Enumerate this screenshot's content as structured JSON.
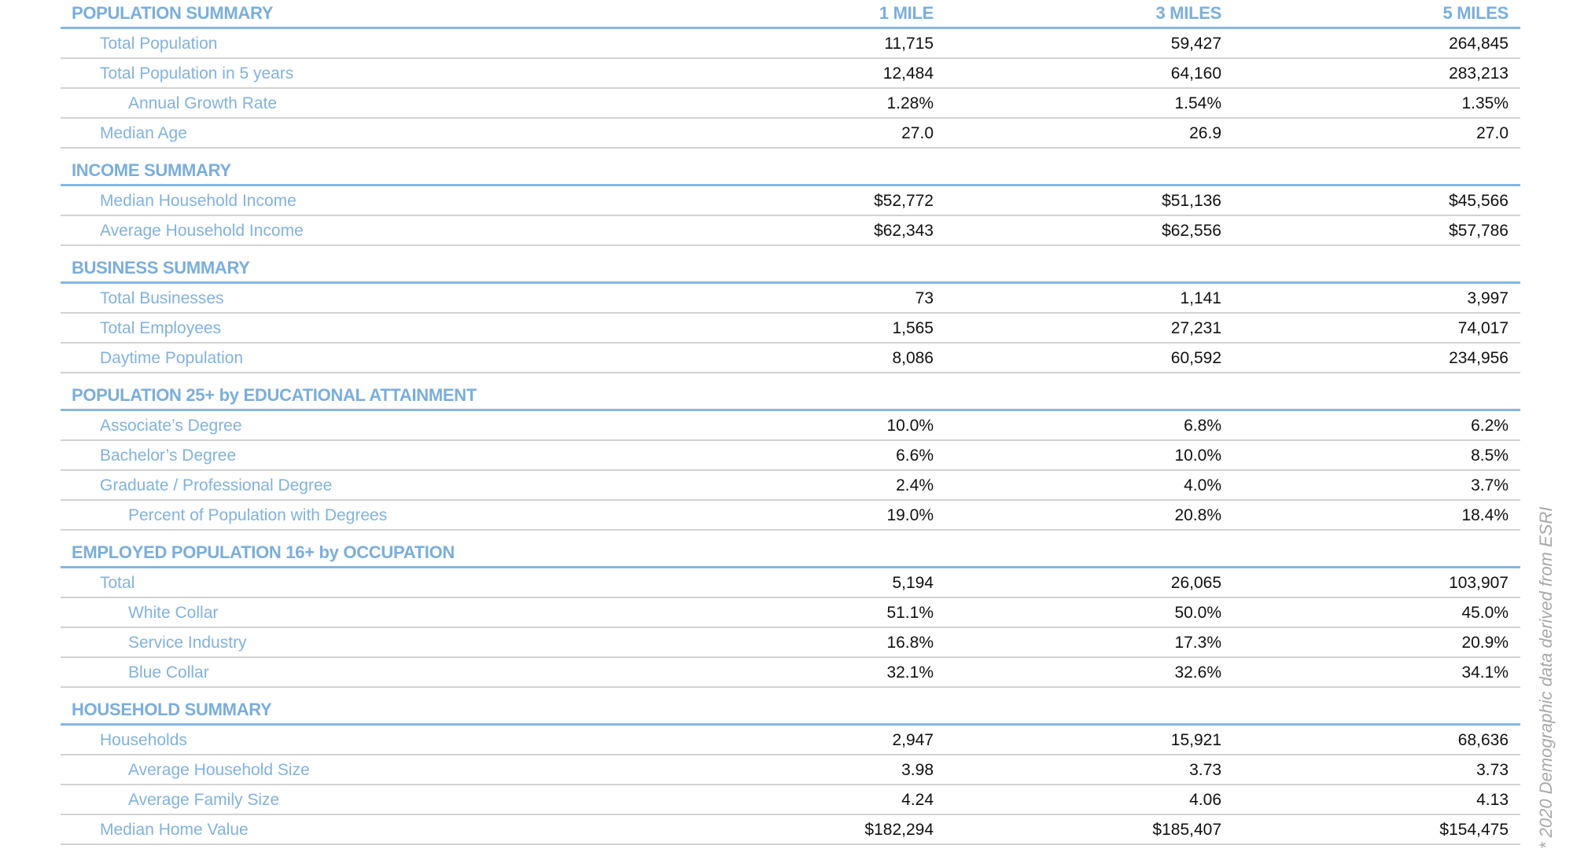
{
  "columns": [
    "1 MILE",
    "3 MILES",
    "5 MILES"
  ],
  "sections": [
    {
      "title": "POPULATION SUMMARY",
      "rows": [
        {
          "label": "Total Population",
          "indent": 0,
          "values": [
            "11,715",
            "59,427",
            "264,845"
          ]
        },
        {
          "label": "Total Population in 5 years",
          "indent": 0,
          "values": [
            "12,484",
            "64,160",
            "283,213"
          ]
        },
        {
          "label": "Annual Growth Rate",
          "indent": 1,
          "values": [
            "1.28%",
            "1.54%",
            "1.35%"
          ]
        },
        {
          "label": "Median Age",
          "indent": 0,
          "values": [
            "27.0",
            "26.9",
            "27.0"
          ]
        }
      ]
    },
    {
      "title": "INCOME SUMMARY",
      "rows": [
        {
          "label": "Median Household Income",
          "indent": 0,
          "values": [
            "$52,772",
            "$51,136",
            "$45,566"
          ]
        },
        {
          "label": "Average Household Income",
          "indent": 0,
          "values": [
            "$62,343",
            "$62,556",
            "$57,786"
          ]
        }
      ]
    },
    {
      "title": "BUSINESS SUMMARY",
      "rows": [
        {
          "label": "Total Businesses",
          "indent": 0,
          "values": [
            "73",
            "1,141",
            "3,997"
          ]
        },
        {
          "label": "Total Employees",
          "indent": 0,
          "values": [
            "1,565",
            "27,231",
            "74,017"
          ]
        },
        {
          "label": "Daytime Population",
          "indent": 0,
          "values": [
            "8,086",
            "60,592",
            "234,956"
          ]
        }
      ]
    },
    {
      "title": "POPULATION 25+ by EDUCATIONAL ATTAINMENT",
      "rows": [
        {
          "label": "Associate’s Degree",
          "indent": 0,
          "values": [
            "10.0%",
            "6.8%",
            "6.2%"
          ]
        },
        {
          "label": "Bachelor’s Degree",
          "indent": 0,
          "values": [
            "6.6%",
            "10.0%",
            "8.5%"
          ]
        },
        {
          "label": "Graduate / Professional Degree",
          "indent": 0,
          "values": [
            "2.4%",
            "4.0%",
            "3.7%"
          ]
        },
        {
          "label": "Percent of Population with Degrees",
          "indent": 1,
          "values": [
            "19.0%",
            "20.8%",
            "18.4%"
          ]
        }
      ]
    },
    {
      "title": "EMPLOYED POPULATION 16+ by OCCUPATION",
      "rows": [
        {
          "label": "Total",
          "indent": 0,
          "values": [
            "5,194",
            "26,065",
            "103,907"
          ]
        },
        {
          "label": "White Collar",
          "indent": 1,
          "values": [
            "51.1%",
            "50.0%",
            "45.0%"
          ]
        },
        {
          "label": "Service Industry",
          "indent": 1,
          "values": [
            "16.8%",
            "17.3%",
            "20.9%"
          ]
        },
        {
          "label": "Blue Collar",
          "indent": 1,
          "values": [
            "32.1%",
            "32.6%",
            "34.1%"
          ]
        }
      ]
    },
    {
      "title": "HOUSEHOLD SUMMARY",
      "rows": [
        {
          "label": "Households",
          "indent": 0,
          "values": [
            "2,947",
            "15,921",
            "68,636"
          ]
        },
        {
          "label": "Average Household Size",
          "indent": 1,
          "values": [
            "3.98",
            "3.73",
            "3.73"
          ]
        },
        {
          "label": "Average Family Size",
          "indent": 1,
          "values": [
            "4.24",
            "4.06",
            "4.13"
          ]
        },
        {
          "label": "Median Home Value",
          "indent": 0,
          "values": [
            "$182,294",
            "$185,407",
            "$154,475"
          ]
        }
      ]
    }
  ],
  "footnote": "* 2020 Demographic data derived from ESRI"
}
